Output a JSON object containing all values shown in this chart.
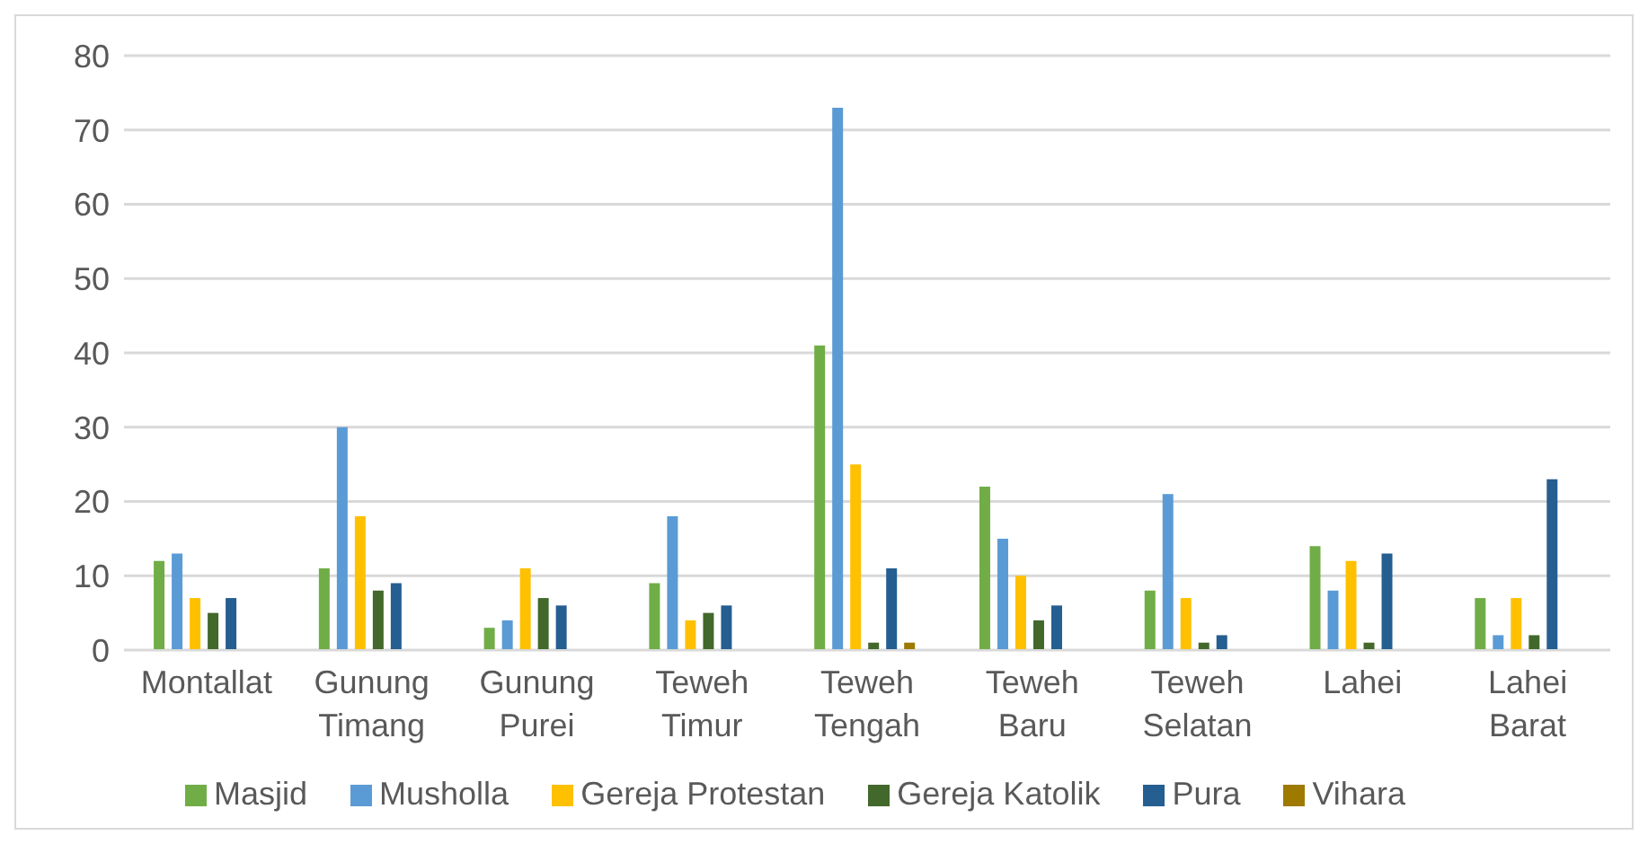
{
  "chart_data": {
    "type": "bar",
    "categories": [
      "Montallat",
      "Gunung Timang",
      "Gunung Purei",
      "Teweh Timur",
      "Teweh Tengah",
      "Teweh Baru",
      "Teweh Selatan",
      "Lahei",
      "Lahei Barat"
    ],
    "series": [
      {
        "name": "Masjid",
        "color": "#70ad47",
        "values": [
          12,
          11,
          3,
          9,
          41,
          22,
          8,
          14,
          7
        ]
      },
      {
        "name": "Musholla",
        "color": "#5b9bd5",
        "values": [
          13,
          30,
          4,
          18,
          73,
          15,
          21,
          8,
          2
        ]
      },
      {
        "name": "Gereja Protestan",
        "color": "#ffc000",
        "values": [
          7,
          18,
          11,
          4,
          25,
          10,
          7,
          12,
          7
        ]
      },
      {
        "name": "Gereja Katolik",
        "color": "#43682b",
        "values": [
          5,
          8,
          7,
          5,
          1,
          4,
          1,
          1,
          2
        ]
      },
      {
        "name": "Pura",
        "color": "#255e91",
        "values": [
          7,
          9,
          6,
          6,
          11,
          6,
          2,
          13,
          23
        ]
      },
      {
        "name": "Vihara",
        "color": "#9e7a00",
        "values": [
          null,
          null,
          null,
          null,
          1,
          null,
          null,
          null,
          null
        ]
      }
    ],
    "ylim": [
      0,
      80
    ],
    "yticks": [
      0,
      10,
      20,
      30,
      40,
      50,
      60,
      70,
      80
    ],
    "grid": "y",
    "legend": "bottom"
  }
}
